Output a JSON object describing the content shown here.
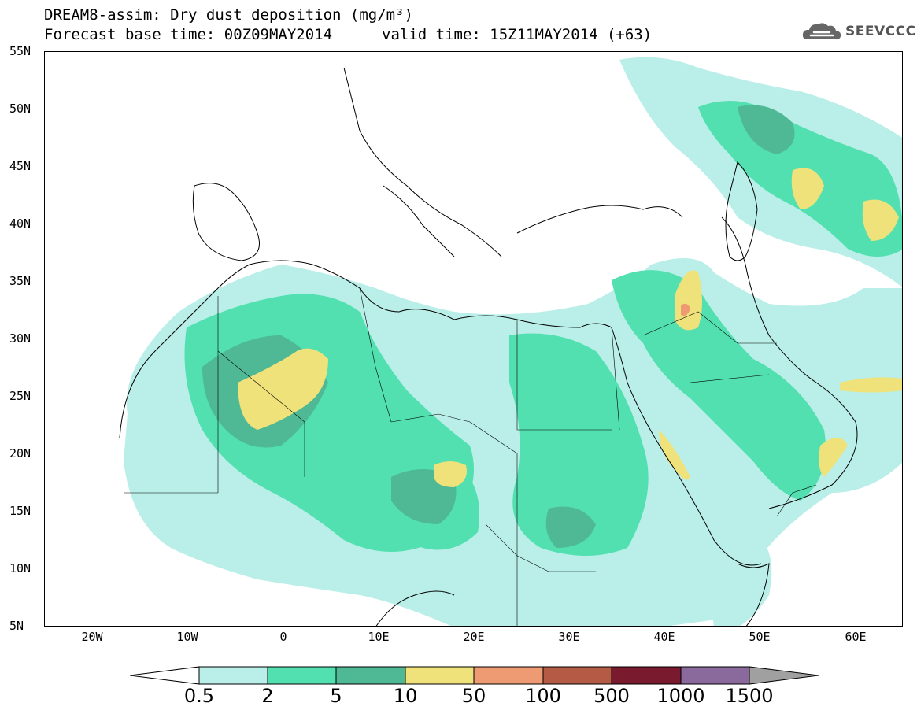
{
  "header": {
    "title": "DREAM8-assim: Dry dust deposition (mg/m³)",
    "base_time": "Forecast base time: 00Z09MAY2014",
    "valid_time": "valid time: 15Z11MAY2014 (+63)"
  },
  "logo": {
    "text": "SEEVCCC",
    "icon": "cloud-icon"
  },
  "axes": {
    "lat_labels": [
      "55N",
      "50N",
      "45N",
      "40N",
      "35N",
      "30N",
      "25N",
      "20N",
      "15N",
      "10N",
      "5N"
    ],
    "lon_labels": [
      "20W",
      "10W",
      "0",
      "10E",
      "20E",
      "30E",
      "40E",
      "50E",
      "60E"
    ],
    "lat_range": [
      5,
      55
    ],
    "lon_range": [
      -25,
      65
    ]
  },
  "legend": {
    "labels": [
      "0.5",
      "2",
      "5",
      "10",
      "50",
      "100",
      "500",
      "1000",
      "1500"
    ],
    "colors": [
      "#ffffff",
      "#b9efe8",
      "#52e0b0",
      "#4fb894",
      "#f0e27a",
      "#ee9a72",
      "#b55a45",
      "#7a1a2e",
      "#8a6a9c",
      "#a0a0a0"
    ]
  }
}
